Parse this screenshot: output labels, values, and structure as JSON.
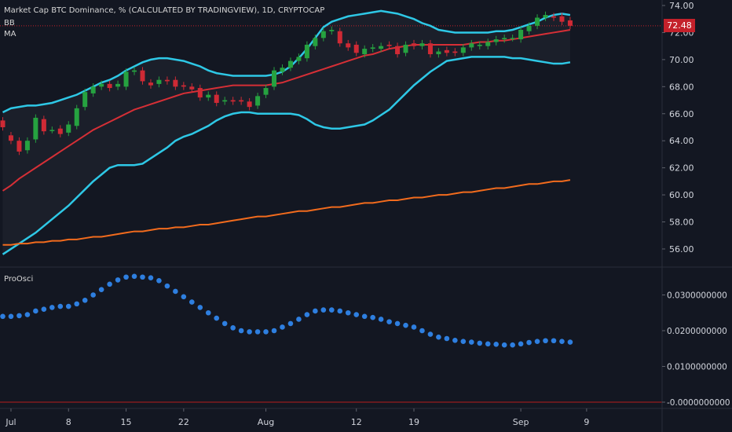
{
  "header": {
    "symbol_title": "Market Cap BTC Dominance, % (CALCULATED BY TRADINGVIEW), 1D, CRYPTOCAP",
    "indicator_bb": "BB",
    "indicator_ma": "MA",
    "oscillator_label": "ProOsci"
  },
  "price_tag": "72.48",
  "colors": {
    "background": "#131722",
    "up_candle": "#26a240",
    "down_candle": "#cf2a35",
    "bb_band": "#2ec8e6",
    "bb_basis": "#d62f36",
    "ma": "#f26b1d",
    "oscillator": "#2e7fe0",
    "price_line": "#c4212b"
  },
  "chart_data": [
    {
      "type": "candlestick",
      "title": "Market Cap BTC Dominance, % (CALCULATED BY TRADINGVIEW), 1D, CRYPTOCAP",
      "x": [
        "Jun 30",
        "Jul 1",
        "Jul 2",
        "Jul 3",
        "Jul 4",
        "Jul 5",
        "Jul 6",
        "Jul 7",
        "Jul 8",
        "Jul 9",
        "Jul 10",
        "Jul 11",
        "Jul 12",
        "Jul 13",
        "Jul 14",
        "Jul 15",
        "Jul 16",
        "Jul 17",
        "Jul 18",
        "Jul 19",
        "Jul 20",
        "Jul 21",
        "Jul 22",
        "Jul 23",
        "Jul 24",
        "Jul 25",
        "Jul 26",
        "Jul 27",
        "Jul 28",
        "Jul 29",
        "Jul 30",
        "Jul 31",
        "Aug 1",
        "Aug 2",
        "Aug 3",
        "Aug 4",
        "Aug 5",
        "Aug 6",
        "Aug 7",
        "Aug 8",
        "Aug 9",
        "Aug 10",
        "Aug 11",
        "Aug 12",
        "Aug 13",
        "Aug 14",
        "Aug 15",
        "Aug 16",
        "Aug 17",
        "Aug 18",
        "Aug 19",
        "Aug 20",
        "Aug 21",
        "Aug 22",
        "Aug 23",
        "Aug 24",
        "Aug 25",
        "Aug 26",
        "Aug 27",
        "Aug 28",
        "Aug 29",
        "Aug 30",
        "Aug 31",
        "Sep 1",
        "Sep 2",
        "Sep 3",
        "Sep 4",
        "Sep 5",
        "Sep 6",
        "Sep 7"
      ],
      "open": [
        65.5,
        64.4,
        64.0,
        63.3,
        64.1,
        65.6,
        64.8,
        64.9,
        64.6,
        65.1,
        66.5,
        67.5,
        68.0,
        68.2,
        68.0,
        68.0,
        69.1,
        69.2,
        68.3,
        68.2,
        68.5,
        68.5,
        68.1,
        68.0,
        67.9,
        67.2,
        67.4,
        66.9,
        67.0,
        67.0,
        66.9,
        66.6,
        67.4,
        68.0,
        69.1,
        69.4,
        69.9,
        70.1,
        71.0,
        71.6,
        72.1,
        72.1,
        71.2,
        71.1,
        70.4,
        70.8,
        70.8,
        71.1,
        71.0,
        70.5,
        71.2,
        71.0,
        71.2,
        70.4,
        70.7,
        70.6,
        70.5,
        70.9,
        71.0,
        71.0,
        71.3,
        71.5,
        71.6,
        71.5,
        72.1,
        72.5,
        73.1,
        73.2,
        73.2,
        72.9
      ],
      "close": [
        65.0,
        64.0,
        63.2,
        64.0,
        65.7,
        64.7,
        64.8,
        64.5,
        65.2,
        66.4,
        67.6,
        68.0,
        68.2,
        67.9,
        68.2,
        69.1,
        69.2,
        68.4,
        68.1,
        68.5,
        68.4,
        68.0,
        68.0,
        67.8,
        67.2,
        67.4,
        66.8,
        67.0,
        66.9,
        66.9,
        66.5,
        67.3,
        67.9,
        69.2,
        69.4,
        69.9,
        70.2,
        71.1,
        71.6,
        72.1,
        72.2,
        71.2,
        70.9,
        70.5,
        70.8,
        70.9,
        71.0,
        71.0,
        70.4,
        71.1,
        71.0,
        71.2,
        70.4,
        70.6,
        70.5,
        70.5,
        70.9,
        71.2,
        71.1,
        71.3,
        71.5,
        71.6,
        71.6,
        72.2,
        72.5,
        73.1,
        73.3,
        73.1,
        72.8,
        72.5
      ],
      "ylim": [
        55,
        74.5
      ],
      "y_ticks": [
        "74.00",
        "72.00",
        "70.00",
        "68.00",
        "66.00",
        "64.00",
        "62.00",
        "60.00",
        "58.00",
        "56.00"
      ],
      "x_ticks": [
        {
          "label": "Jul",
          "date": "Jul 1"
        },
        {
          "label": "8",
          "date": "Jul 8"
        },
        {
          "label": "15",
          "date": "Jul 15"
        },
        {
          "label": "22",
          "date": "Jul 22"
        },
        {
          "label": "Aug",
          "date": "Aug 1"
        },
        {
          "label": "12",
          "date": "Aug 12"
        },
        {
          "label": "19",
          "date": "Aug 19"
        },
        {
          "label": "Sep",
          "date": "Sep 1"
        },
        {
          "label": "9",
          "date": "Sep 9"
        }
      ],
      "series": [
        {
          "name": "BB upper",
          "values": [
            66.1,
            66.4,
            66.5,
            66.6,
            66.6,
            66.7,
            66.8,
            67.0,
            67.2,
            67.4,
            67.7,
            68.0,
            68.3,
            68.5,
            68.8,
            69.2,
            69.5,
            69.8,
            70.0,
            70.1,
            70.1,
            70.0,
            69.9,
            69.7,
            69.5,
            69.2,
            69.0,
            68.9,
            68.8,
            68.8,
            68.8,
            68.8,
            68.8,
            68.9,
            69.1,
            69.5,
            70.1,
            70.8,
            71.6,
            72.4,
            72.8,
            73.0,
            73.2,
            73.3,
            73.4,
            73.5,
            73.6,
            73.5,
            73.4,
            73.2,
            73.0,
            72.7,
            72.5,
            72.2,
            72.1,
            72.0,
            72.0,
            72.0,
            72.0,
            72.0,
            72.1,
            72.1,
            72.2,
            72.4,
            72.6,
            72.8,
            73.1,
            73.3,
            73.4,
            73.3
          ]
        },
        {
          "name": "BB lower",
          "values": [
            55.6,
            56.0,
            56.4,
            56.8,
            57.2,
            57.7,
            58.2,
            58.7,
            59.2,
            59.8,
            60.4,
            61.0,
            61.5,
            62.0,
            62.2,
            62.2,
            62.2,
            62.3,
            62.7,
            63.1,
            63.5,
            64.0,
            64.3,
            64.5,
            64.8,
            65.1,
            65.5,
            65.8,
            66.0,
            66.1,
            66.1,
            66.0,
            66.0,
            66.0,
            66.0,
            66.0,
            65.9,
            65.6,
            65.2,
            65.0,
            64.9,
            64.9,
            65.0,
            65.1,
            65.2,
            65.5,
            65.9,
            66.3,
            66.9,
            67.5,
            68.1,
            68.6,
            69.1,
            69.5,
            69.9,
            70.0,
            70.1,
            70.2,
            70.2,
            70.2,
            70.2,
            70.2,
            70.1,
            70.1,
            70.0,
            69.9,
            69.8,
            69.7,
            69.7,
            69.8
          ]
        },
        {
          "name": "BB basis",
          "values": [
            60.3,
            60.7,
            61.2,
            61.6,
            62.0,
            62.4,
            62.8,
            63.2,
            63.6,
            64.0,
            64.4,
            64.8,
            65.1,
            65.4,
            65.7,
            66.0,
            66.3,
            66.5,
            66.7,
            66.9,
            67.1,
            67.3,
            67.5,
            67.6,
            67.7,
            67.8,
            67.9,
            68.0,
            68.1,
            68.1,
            68.1,
            68.1,
            68.1,
            68.2,
            68.3,
            68.5,
            68.7,
            68.9,
            69.1,
            69.3,
            69.5,
            69.7,
            69.9,
            70.1,
            70.3,
            70.4,
            70.6,
            70.8,
            70.9,
            71.0,
            71.1,
            71.1,
            71.1,
            71.1,
            71.1,
            71.1,
            71.1,
            71.2,
            71.3,
            71.3,
            71.4,
            71.4,
            71.5,
            71.6,
            71.7,
            71.8,
            71.9,
            72.0,
            72.1,
            72.2
          ]
        },
        {
          "name": "MA",
          "values": [
            56.3,
            56.3,
            56.4,
            56.4,
            56.5,
            56.5,
            56.6,
            56.6,
            56.7,
            56.7,
            56.8,
            56.9,
            56.9,
            57.0,
            57.1,
            57.2,
            57.3,
            57.3,
            57.4,
            57.5,
            57.5,
            57.6,
            57.6,
            57.7,
            57.8,
            57.8,
            57.9,
            58.0,
            58.1,
            58.2,
            58.3,
            58.4,
            58.4,
            58.5,
            58.6,
            58.7,
            58.8,
            58.8,
            58.9,
            59.0,
            59.1,
            59.1,
            59.2,
            59.3,
            59.4,
            59.4,
            59.5,
            59.6,
            59.6,
            59.7,
            59.8,
            59.8,
            59.9,
            60.0,
            60.0,
            60.1,
            60.2,
            60.2,
            60.3,
            60.4,
            60.5,
            60.5,
            60.6,
            60.7,
            60.8,
            60.8,
            60.9,
            61.0,
            61.0,
            61.1
          ]
        }
      ]
    },
    {
      "type": "scatter",
      "title": "ProOsci",
      "x": [
        "Jun 30",
        "Jul 1",
        "Jul 2",
        "Jul 3",
        "Jul 4",
        "Jul 5",
        "Jul 6",
        "Jul 7",
        "Jul 8",
        "Jul 9",
        "Jul 10",
        "Jul 11",
        "Jul 12",
        "Jul 13",
        "Jul 14",
        "Jul 15",
        "Jul 16",
        "Jul 17",
        "Jul 18",
        "Jul 19",
        "Jul 20",
        "Jul 21",
        "Jul 22",
        "Jul 23",
        "Jul 24",
        "Jul 25",
        "Jul 26",
        "Jul 27",
        "Jul 28",
        "Jul 29",
        "Jul 30",
        "Jul 31",
        "Aug 1",
        "Aug 2",
        "Aug 3",
        "Aug 4",
        "Aug 5",
        "Aug 6",
        "Aug 7",
        "Aug 8",
        "Aug 9",
        "Aug 10",
        "Aug 11",
        "Aug 12",
        "Aug 13",
        "Aug 14",
        "Aug 15",
        "Aug 16",
        "Aug 17",
        "Aug 18",
        "Aug 19",
        "Aug 20",
        "Aug 21",
        "Aug 22",
        "Aug 23",
        "Aug 24",
        "Aug 25",
        "Aug 26",
        "Aug 27",
        "Aug 28",
        "Aug 29",
        "Aug 30",
        "Aug 31",
        "Sep 1",
        "Sep 2",
        "Sep 3",
        "Sep 4",
        "Sep 5",
        "Sep 6",
        "Sep 7"
      ],
      "values": [
        0.024,
        0.024,
        0.0242,
        0.0245,
        0.0255,
        0.026,
        0.0265,
        0.0268,
        0.0268,
        0.0275,
        0.0285,
        0.03,
        0.0315,
        0.033,
        0.0342,
        0.035,
        0.0352,
        0.035,
        0.0348,
        0.034,
        0.0325,
        0.031,
        0.0295,
        0.028,
        0.0265,
        0.025,
        0.0235,
        0.022,
        0.0208,
        0.02,
        0.0197,
        0.0197,
        0.0197,
        0.02,
        0.021,
        0.022,
        0.0232,
        0.0245,
        0.0255,
        0.0258,
        0.0258,
        0.0255,
        0.025,
        0.0245,
        0.024,
        0.0237,
        0.0232,
        0.0225,
        0.022,
        0.0215,
        0.021,
        0.02,
        0.019,
        0.0182,
        0.0178,
        0.0173,
        0.017,
        0.0168,
        0.0165,
        0.0163,
        0.0162,
        0.016,
        0.016,
        0.0163,
        0.0167,
        0.017,
        0.0172,
        0.0172,
        0.017,
        0.0168
      ],
      "ylim": [
        -0.0012,
        0.0365
      ],
      "y_ticks": [
        "0.0300000000",
        "0.0200000000",
        "0.0100000000",
        "-0.0000000000"
      ]
    }
  ]
}
